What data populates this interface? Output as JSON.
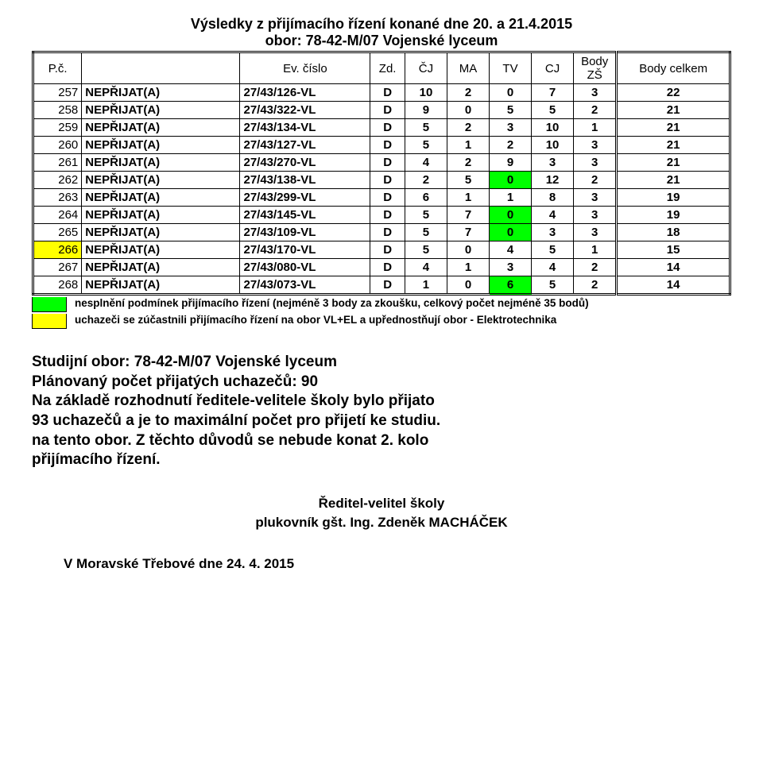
{
  "title": "Výsledky z přijímacího řízení konané dne 20. a 21.4.2015",
  "subtitle": "obor: 78-42-M/07 Vojenské lyceum",
  "headers": {
    "pc": "P.č.",
    "status_blank": "",
    "ev": "Ev. číslo",
    "zd": "Zd.",
    "cj": "ČJ",
    "ma": "MA",
    "tv": "TV",
    "cjaz": "CJ",
    "bodyzs": "Body ZŠ",
    "total": "Body celkem"
  },
  "rows": [
    {
      "pc": "257",
      "status": "NEPŘIJAT(A)",
      "ev": "27/43/126-VL",
      "zd": "D",
      "cj": "10",
      "ma": "2",
      "tv": "0",
      "cjaz": "7",
      "bzs": "3",
      "total": "22",
      "hl": ""
    },
    {
      "pc": "258",
      "status": "NEPŘIJAT(A)",
      "ev": "27/43/322-VL",
      "zd": "D",
      "cj": "9",
      "ma": "0",
      "tv": "5",
      "cjaz": "5",
      "bzs": "2",
      "total": "21",
      "hl": ""
    },
    {
      "pc": "259",
      "status": "NEPŘIJAT(A)",
      "ev": "27/43/134-VL",
      "zd": "D",
      "cj": "5",
      "ma": "2",
      "tv": "3",
      "cjaz": "10",
      "bzs": "1",
      "total": "21",
      "hl": ""
    },
    {
      "pc": "260",
      "status": "NEPŘIJAT(A)",
      "ev": "27/43/127-VL",
      "zd": "D",
      "cj": "5",
      "ma": "1",
      "tv": "2",
      "cjaz": "10",
      "bzs": "3",
      "total": "21",
      "hl": ""
    },
    {
      "pc": "261",
      "status": "NEPŘIJAT(A)",
      "ev": "27/43/270-VL",
      "zd": "D",
      "cj": "4",
      "ma": "2",
      "tv": "9",
      "cjaz": "3",
      "bzs": "3",
      "total": "21",
      "hl": ""
    },
    {
      "pc": "262",
      "status": "NEPŘIJAT(A)",
      "ev": "27/43/138-VL",
      "zd": "D",
      "cj": "2",
      "ma": "5",
      "tv": "0",
      "cjaz": "12",
      "bzs": "2",
      "total": "21",
      "hl": "green"
    },
    {
      "pc": "263",
      "status": "NEPŘIJAT(A)",
      "ev": "27/43/299-VL",
      "zd": "D",
      "cj": "6",
      "ma": "1",
      "tv": "1",
      "cjaz": "8",
      "bzs": "3",
      "total": "19",
      "hl": ""
    },
    {
      "pc": "264",
      "status": "NEPŘIJAT(A)",
      "ev": "27/43/145-VL",
      "zd": "D",
      "cj": "5",
      "ma": "7",
      "tv": "0",
      "cjaz": "4",
      "bzs": "3",
      "total": "19",
      "hl": "green"
    },
    {
      "pc": "265",
      "status": "NEPŘIJAT(A)",
      "ev": "27/43/109-VL",
      "zd": "D",
      "cj": "5",
      "ma": "7",
      "tv": "0",
      "cjaz": "3",
      "bzs": "3",
      "total": "18",
      "hl": "green"
    },
    {
      "pc": "266",
      "status": "NEPŘIJAT(A)",
      "ev": "27/43/170-VL",
      "zd": "D",
      "cj": "5",
      "ma": "0",
      "tv": "4",
      "cjaz": "5",
      "bzs": "1",
      "total": "15",
      "hl": "yellow"
    },
    {
      "pc": "267",
      "status": "NEPŘIJAT(A)",
      "ev": "27/43/080-VL",
      "zd": "D",
      "cj": "4",
      "ma": "1",
      "tv": "3",
      "cjaz": "4",
      "bzs": "2",
      "total": "14",
      "hl": ""
    },
    {
      "pc": "268",
      "status": "NEPŘIJAT(A)",
      "ev": "27/43/073-VL",
      "zd": "D",
      "cj": "1",
      "ma": "0",
      "tv": "6",
      "cjaz": "5",
      "bzs": "2",
      "total": "14",
      "hl": "green"
    }
  ],
  "legend": {
    "green_color": "#00ff00",
    "green_text": "nesplnění podmínek přijímacího řízení (nejméně 3 body za zkoušku, celkový počet nejméně 35 bodů)",
    "yellow_color": "#ffff00",
    "yellow_text": "uchazeči se zúčastnili přijímacího řízení na obor VL+EL a upřednostňují obor - Elektrotechnika"
  },
  "info": {
    "l1": "Studijní obor: 78-42-M/07  Vojenské lyceum",
    "l2": "Plánovaný počet přijatých uchazečů: 90",
    "l3": "Na základě rozhodnutí ředitele-velitele školy bylo přijato",
    "l4": "93 uchazečů a  je to maximální počet pro přijetí ke studiu.",
    "l5": "na tento obor. Z těchto důvodů se nebude konat 2. kolo",
    "l6": "přijímacího řízení."
  },
  "sign": {
    "l1": "Ředitel-velitel školy",
    "l2": "plukovník gšt. Ing. Zdeněk MACHÁČEK"
  },
  "footer": "V Moravské Třebové dne 24. 4. 2015"
}
